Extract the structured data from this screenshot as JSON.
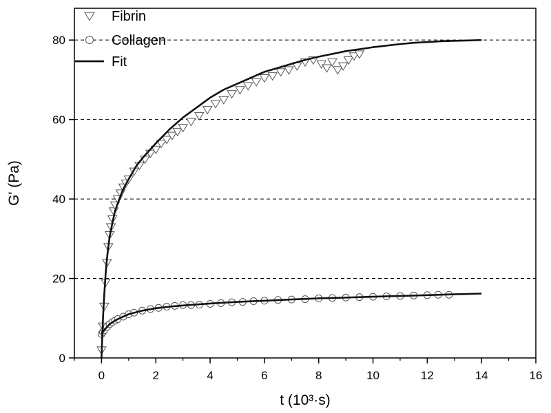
{
  "chart_data": {
    "type": "scatter",
    "title": "",
    "xlabel": "t (10³·s)",
    "ylabel": "G' (Pa)",
    "xlim": [
      -1,
      16
    ],
    "ylim": [
      0,
      88
    ],
    "xticks": [
      "0",
      "2",
      "4",
      "6",
      "8",
      "10",
      "12",
      "14",
      "16"
    ],
    "yticks": [
      "0",
      "20",
      "40",
      "60",
      "80"
    ],
    "grid": "horizontal dashed at 20, 40, 60, 80",
    "legend": {
      "placement": "top-left",
      "entries": [
        "Fibrin",
        "Collagen",
        "Fit"
      ]
    },
    "series": [
      {
        "name": "Fibrin",
        "marker": "triangle-down",
        "x": [
          0.0,
          0.05,
          0.1,
          0.15,
          0.2,
          0.25,
          0.3,
          0.35,
          0.4,
          0.45,
          0.5,
          0.6,
          0.7,
          0.8,
          0.9,
          1.0,
          1.2,
          1.4,
          1.6,
          1.8,
          2.0,
          2.2,
          2.4,
          2.6,
          2.8,
          3.0,
          3.3,
          3.6,
          3.9,
          4.2,
          4.5,
          4.8,
          5.1,
          5.4,
          5.7,
          6.0,
          6.3,
          6.6,
          6.9,
          7.2,
          7.5,
          7.8,
          8.1,
          8.3,
          8.5,
          8.7,
          8.9,
          9.1,
          9.3,
          9.5
        ],
        "y": [
          2,
          8,
          13,
          19,
          24,
          28,
          31,
          33,
          35,
          37,
          38.5,
          40,
          41.5,
          43,
          44,
          45,
          47,
          48.5,
          50,
          51.5,
          52.5,
          54,
          55,
          56,
          57,
          58,
          59.5,
          61,
          62.5,
          64,
          65,
          66.5,
          67.5,
          68.5,
          69.5,
          70.5,
          71,
          72,
          72.5,
          73.5,
          74.5,
          75,
          74,
          73,
          74.5,
          72.5,
          73.5,
          75,
          76,
          76.5
        ]
      },
      {
        "name": "Collagen",
        "marker": "circle",
        "x": [
          0.0,
          0.05,
          0.1,
          0.2,
          0.3,
          0.4,
          0.5,
          0.6,
          0.8,
          1.0,
          1.2,
          1.5,
          1.8,
          2.1,
          2.4,
          2.7,
          3.0,
          3.3,
          3.6,
          4.0,
          4.4,
          4.8,
          5.2,
          5.6,
          6.0,
          6.5,
          7.0,
          7.5,
          8.0,
          8.5,
          9.0,
          9.5,
          10.0,
          10.5,
          11.0,
          11.5,
          12.0,
          12.4,
          12.8
        ],
        "y": [
          6,
          6.5,
          7,
          7.8,
          8.5,
          9.0,
          9.4,
          9.8,
          10.4,
          11.0,
          11.4,
          11.9,
          12.3,
          12.6,
          12.9,
          13.1,
          13.3,
          13.3,
          13.4,
          13.6,
          13.8,
          14.0,
          14.1,
          14.3,
          14.4,
          14.6,
          14.7,
          14.8,
          15.0,
          15.1,
          15.2,
          15.3,
          15.4,
          15.5,
          15.6,
          15.7,
          15.8,
          15.9,
          15.9
        ]
      },
      {
        "name": "Fit",
        "type": "line",
        "segments": [
          {
            "x": [
              0.0,
              0.03,
              0.06,
              0.1,
              0.15,
              0.2,
              0.25,
              0.3,
              0.4,
              0.5,
              0.6,
              0.8,
              1.0,
              1.3,
              1.6,
              2.0,
              2.5,
              3.0,
              3.5,
              4.0,
              4.5,
              5.0,
              5.5,
              6.0,
              6.5,
              7.0,
              7.5,
              8.0,
              8.5,
              9.0,
              9.5,
              10.0,
              10.5,
              11.0,
              11.5,
              12.0,
              12.5,
              13.0,
              13.5,
              14.0
            ],
            "y": [
              0,
              6,
              11,
              16,
              21,
              25,
              28,
              30.5,
              34,
              37,
              39,
              42.5,
              45,
              48.5,
              51,
              54,
              57.5,
              60.5,
              63,
              65.5,
              67.5,
              69,
              70.5,
              72,
              73,
              74,
              75,
              75.8,
              76.5,
              77.2,
              77.7,
              78.2,
              78.6,
              79.0,
              79.3,
              79.5,
              79.7,
              79.8,
              79.9,
              80.0
            ]
          },
          {
            "x": [
              0.0,
              0.05,
              0.1,
              0.2,
              0.3,
              0.5,
              0.7,
              1.0,
              1.5,
              2.0,
              2.5,
              3.0,
              4.0,
              5.0,
              6.0,
              7.0,
              8.0,
              9.0,
              10.0,
              11.0,
              12.0,
              13.0,
              14.0
            ],
            "y": [
              6,
              6.5,
              7,
              7.8,
              8.5,
              9.4,
              10.1,
              11.0,
              11.9,
              12.5,
              12.9,
              13.2,
              13.7,
              14.1,
              14.4,
              14.7,
              15.0,
              15.2,
              15.4,
              15.6,
              15.8,
              16.0,
              16.2
            ]
          }
        ]
      }
    ]
  }
}
